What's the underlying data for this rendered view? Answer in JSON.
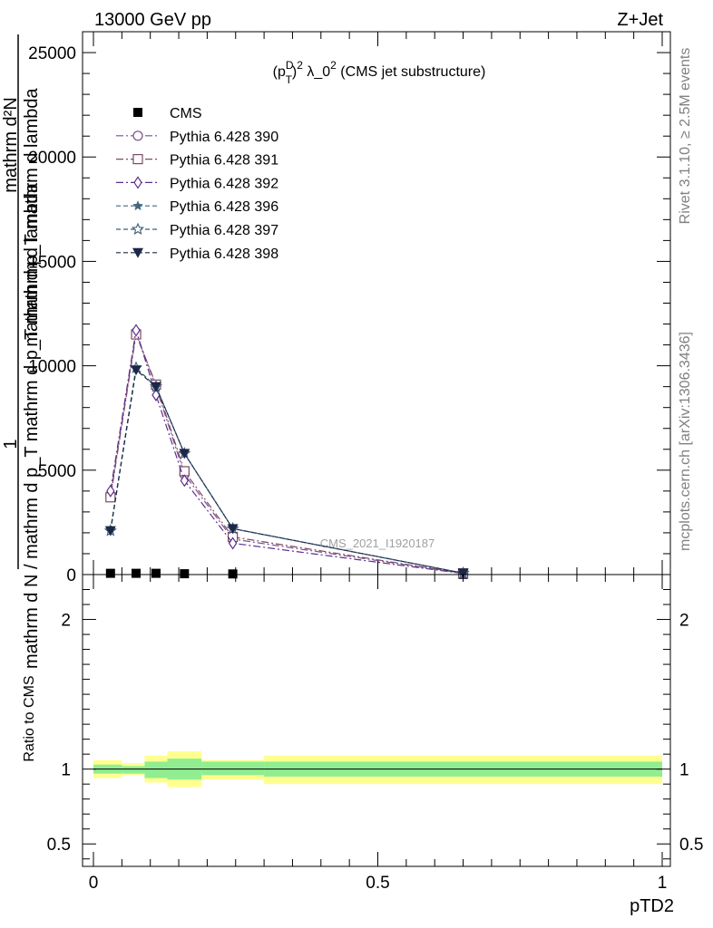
{
  "header": {
    "left": "13000 GeV pp",
    "right": "Z+Jet"
  },
  "side_text": {
    "rivet": "Rivet 3.1.10, ≥ 2.5M events",
    "mcplots": "mcplots.cern.ch [arXiv:1306.3436]"
  },
  "chart_data": [
    {
      "type": "line",
      "title": "(p_T^D)^2 λ_0^2 (CMS jet substructure)",
      "title_parts": {
        "a": "(p",
        "sup1": "D",
        "sub1": "T",
        "b": ")",
        "sup2": "2",
        "c": " λ_0",
        "sup3": "2",
        "d": " (CMS jet substructure)"
      },
      "watermark": "CMS_2021_I1920187",
      "ylabel": {
        "numerator": "1",
        "denominator": "mathrm d N / mathrm d p_T mathrm d p_T mathrm d lambda",
        "numerator_b": "mathrm d²N",
        "denominator_b": "mathrm d p_T mathrm d lambda"
      },
      "xlabel": "pTD2",
      "xlim": [
        0,
        1
      ],
      "ylim": [
        0,
        26000
      ],
      "y_ticks": [
        0,
        5000,
        10000,
        15000,
        20000,
        25000
      ],
      "y_tick_labels": [
        "0",
        "5000",
        "10000",
        "15000",
        "20000",
        "25000"
      ],
      "x": [
        0.03,
        0.075,
        0.11,
        0.16,
        0.245,
        0.65
      ],
      "legend": {
        "placement": "top-left"
      },
      "series": [
        {
          "name": "CMS",
          "color": "#000000",
          "marker": "filled-square",
          "line": "none",
          "values": [
            60,
            60,
            60,
            40,
            30,
            5
          ]
        },
        {
          "name": "Pythia 6.428 390",
          "color": "#7e4e8c",
          "marker": "open-circle",
          "line": "dashdot",
          "values": [
            3800,
            11600,
            9000,
            4800,
            1700,
            60
          ]
        },
        {
          "name": "Pythia 6.428 391",
          "color": "#7d4b65",
          "marker": "open-square",
          "line": "dashdot",
          "values": [
            3700,
            11500,
            9100,
            4950,
            1800,
            60
          ]
        },
        {
          "name": "Pythia 6.428 392",
          "color": "#5b2f8e",
          "marker": "open-diamond",
          "line": "dashdot",
          "values": [
            4000,
            11700,
            8600,
            4500,
            1500,
            50
          ]
        },
        {
          "name": "Pythia 6.428 396",
          "color": "#44677f",
          "marker": "filled-star",
          "line": "dashed",
          "values": [
            2100,
            9900,
            9000,
            5800,
            2200,
            70
          ]
        },
        {
          "name": "Pythia 6.428 397",
          "color": "#3e5f78",
          "marker": "open-star",
          "line": "dashed",
          "values": [
            2100,
            9900,
            9000,
            5800,
            2200,
            70
          ]
        },
        {
          "name": "Pythia 6.428 398",
          "color": "#1c2748",
          "marker": "filled-triangle-down",
          "line": "dashed",
          "values": [
            2100,
            9800,
            9000,
            5800,
            2200,
            70
          ]
        }
      ]
    },
    {
      "type": "area",
      "ylabel": "Ratio to CMS",
      "xlabel": "pTD2",
      "xlim": [
        0,
        1
      ],
      "ylim": [
        0.35,
        2.3
      ],
      "y_ticks": [
        0.5,
        1,
        2
      ],
      "y_tick_labels": [
        "0.5",
        "1",
        "2"
      ],
      "x_ticks": [
        0,
        0.5,
        1
      ],
      "x_tick_labels": [
        "0",
        "0.5",
        "1"
      ],
      "reference_line": 1,
      "bins": [
        0,
        0.05,
        0.09,
        0.13,
        0.19,
        0.3,
        1.0
      ],
      "green_band": {
        "color": "#90ee90",
        "lo": [
          0.97,
          0.97,
          0.94,
          0.93,
          0.96,
          0.95
        ],
        "hi": [
          1.03,
          1.02,
          1.05,
          1.07,
          1.05,
          1.05
        ]
      },
      "yellow_band": {
        "color": "#ffff90",
        "lo": [
          0.94,
          0.96,
          0.91,
          0.88,
          0.93,
          0.9
        ],
        "hi": [
          1.06,
          1.04,
          1.09,
          1.12,
          1.06,
          1.09
        ]
      }
    }
  ]
}
